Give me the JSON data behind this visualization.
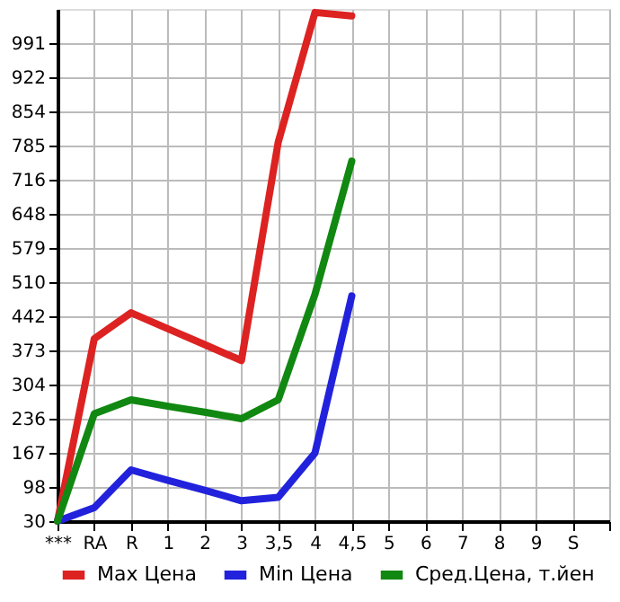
{
  "chart_data": {
    "type": "line",
    "categories": [
      "***",
      "RA",
      "R",
      "1",
      "2",
      "3",
      "3,5",
      "4",
      "4,5",
      "5",
      "6",
      "7",
      "8",
      "9",
      "S",
      null
    ],
    "series": [
      {
        "name": "Max Цена",
        "color": "#dd2222",
        "values": [
          30,
          397,
          449,
          417,
          385,
          353,
          792,
          1053,
          1046,
          null,
          null,
          null,
          null,
          null,
          null,
          null
        ]
      },
      {
        "name": "Min Цена",
        "color": "#2222dd",
        "values": [
          30,
          57,
          133,
          112,
          92,
          71,
          78,
          167,
          483,
          null,
          null,
          null,
          null,
          null,
          null,
          null
        ]
      },
      {
        "name": "Сред.Цена, т.йен",
        "color": "#118811",
        "values": [
          30,
          246,
          274,
          261,
          249,
          236,
          274,
          486,
          754,
          null,
          null,
          null,
          null,
          null,
          null,
          null
        ]
      }
    ],
    "ylim": [
      30,
      1060
    ],
    "yticks": [
      30,
      98,
      167,
      236,
      304,
      373,
      442,
      510,
      579,
      648,
      716,
      785,
      854,
      922,
      991
    ],
    "grid": true,
    "legend": "bottom",
    "marker": "none",
    "line_style": "solid"
  }
}
